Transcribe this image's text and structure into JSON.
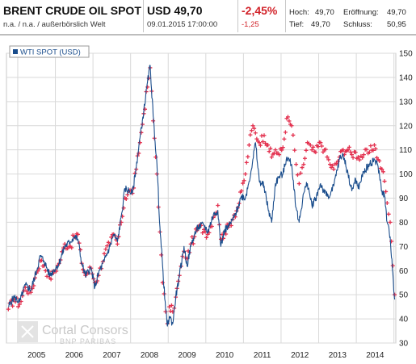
{
  "header": {
    "title": "BRENT CRUDE OIL SPOT",
    "subtitle": "n.a. / n.a. / außerbörslich Welt",
    "price": "USD 49,70",
    "datetime": "09.01.2015 17:00:00",
    "change_pct": "-2,45%",
    "change_abs": "-1,25",
    "high_label": "Hoch:",
    "high_value": "49,70",
    "open_label": "Eröffnung:",
    "open_value": "49,70",
    "low_label": "Tief:",
    "low_value": "49,70",
    "close_label": "Schluss:",
    "close_value": "50,95"
  },
  "watermark": {
    "brand": "Cortal Consors",
    "sub": "BNP PARIBAS"
  },
  "colors": {
    "wti_line": "#1a4d8c",
    "brent_marks": "#e3314f",
    "grid": "#d9d9d9",
    "negative": "#d2232a"
  },
  "chart_data": {
    "type": "line",
    "y_axis_position": "right",
    "legend_position": "top-left",
    "grid": true,
    "ylim": [
      30,
      150
    ],
    "y_ticks": [
      "30",
      "40",
      "50",
      "60",
      "70",
      "80",
      "90",
      "100",
      "110",
      "120",
      "130",
      "140",
      "150"
    ],
    "x_tick_labels": [
      "2005",
      "2006",
      "2007",
      "2008",
      "2009",
      "2010",
      "2011",
      "2012",
      "2013",
      "2014"
    ],
    "series": [
      {
        "name": "WTI SPOT (USD)",
        "style": "line",
        "points": [
          [
            2004.75,
            45
          ],
          [
            2004.9,
            49
          ],
          [
            2005.05,
            47
          ],
          [
            2005.2,
            54
          ],
          [
            2005.35,
            52
          ],
          [
            2005.5,
            60
          ],
          [
            2005.6,
            66
          ],
          [
            2005.7,
            64
          ],
          [
            2005.85,
            58
          ],
          [
            2005.95,
            60
          ],
          [
            2006.1,
            63
          ],
          [
            2006.25,
            70
          ],
          [
            2006.4,
            72
          ],
          [
            2006.5,
            74
          ],
          [
            2006.6,
            73
          ],
          [
            2006.7,
            63
          ],
          [
            2006.8,
            58
          ],
          [
            2006.95,
            61
          ],
          [
            2007.05,
            53
          ],
          [
            2007.15,
            59
          ],
          [
            2007.3,
            64
          ],
          [
            2007.45,
            70
          ],
          [
            2007.55,
            75
          ],
          [
            2007.65,
            72
          ],
          [
            2007.75,
            82
          ],
          [
            2007.85,
            94
          ],
          [
            2007.95,
            93
          ],
          [
            2008.05,
            92
          ],
          [
            2008.15,
            103
          ],
          [
            2008.25,
            115
          ],
          [
            2008.35,
            126
          ],
          [
            2008.45,
            138
          ],
          [
            2008.52,
            145
          ],
          [
            2008.6,
            124
          ],
          [
            2008.7,
            104
          ],
          [
            2008.78,
            78
          ],
          [
            2008.85,
            62
          ],
          [
            2008.93,
            44
          ],
          [
            2008.98,
            37
          ],
          [
            2009.03,
            41
          ],
          [
            2009.12,
            38
          ],
          [
            2009.2,
            49
          ],
          [
            2009.3,
            58
          ],
          [
            2009.42,
            70
          ],
          [
            2009.5,
            62
          ],
          [
            2009.6,
            70
          ],
          [
            2009.7,
            75
          ],
          [
            2009.8,
            78
          ],
          [
            2009.95,
            79
          ],
          [
            2010.05,
            76
          ],
          [
            2010.2,
            83
          ],
          [
            2010.32,
            85
          ],
          [
            2010.4,
            70
          ],
          [
            2010.5,
            77
          ],
          [
            2010.6,
            78
          ],
          [
            2010.75,
            82
          ],
          [
            2010.85,
            86
          ],
          [
            2010.95,
            91
          ],
          [
            2011.05,
            90
          ],
          [
            2011.15,
            97
          ],
          [
            2011.25,
            106
          ],
          [
            2011.32,
            113
          ],
          [
            2011.42,
            97
          ],
          [
            2011.55,
            95
          ],
          [
            2011.65,
            86
          ],
          [
            2011.75,
            80
          ],
          [
            2011.85,
            96
          ],
          [
            2011.95,
            99
          ],
          [
            2012.05,
            100
          ],
          [
            2012.15,
            107
          ],
          [
            2012.28,
            104
          ],
          [
            2012.4,
            86
          ],
          [
            2012.48,
            80
          ],
          [
            2012.6,
            92
          ],
          [
            2012.7,
            96
          ],
          [
            2012.82,
            87
          ],
          [
            2012.92,
            90
          ],
          [
            2013.05,
            96
          ],
          [
            2013.15,
            92
          ],
          [
            2013.3,
            91
          ],
          [
            2013.4,
            95
          ],
          [
            2013.55,
            106
          ],
          [
            2013.65,
            108
          ],
          [
            2013.78,
            100
          ],
          [
            2013.88,
            93
          ],
          [
            2013.98,
            98
          ],
          [
            2014.05,
            94
          ],
          [
            2014.2,
            101
          ],
          [
            2014.35,
            104
          ],
          [
            2014.48,
            106
          ],
          [
            2014.58,
            103
          ],
          [
            2014.68,
            93
          ],
          [
            2014.75,
            91
          ],
          [
            2014.82,
            80
          ],
          [
            2014.9,
            74
          ],
          [
            2014.97,
            59
          ],
          [
            2015.02,
            48
          ]
        ]
      },
      {
        "name": "",
        "style": "cross-marks",
        "points": [
          [
            2004.75,
            44
          ],
          [
            2004.9,
            48
          ],
          [
            2005.05,
            46
          ],
          [
            2005.2,
            53
          ],
          [
            2005.35,
            51
          ],
          [
            2005.5,
            59
          ],
          [
            2005.6,
            64
          ],
          [
            2005.7,
            62
          ],
          [
            2005.85,
            57
          ],
          [
            2005.95,
            59
          ],
          [
            2006.1,
            63
          ],
          [
            2006.25,
            71
          ],
          [
            2006.4,
            70
          ],
          [
            2006.5,
            74
          ],
          [
            2006.6,
            75
          ],
          [
            2006.7,
            63
          ],
          [
            2006.8,
            58
          ],
          [
            2006.95,
            61
          ],
          [
            2007.05,
            55
          ],
          [
            2007.15,
            58
          ],
          [
            2007.3,
            67
          ],
          [
            2007.45,
            71
          ],
          [
            2007.55,
            75
          ],
          [
            2007.65,
            71
          ],
          [
            2007.75,
            80
          ],
          [
            2007.85,
            90
          ],
          [
            2007.95,
            93
          ],
          [
            2008.05,
            92
          ],
          [
            2008.15,
            102
          ],
          [
            2008.25,
            113
          ],
          [
            2008.35,
            125
          ],
          [
            2008.45,
            136
          ],
          [
            2008.52,
            144
          ],
          [
            2008.6,
            122
          ],
          [
            2008.7,
            100
          ],
          [
            2008.78,
            76
          ],
          [
            2008.85,
            55
          ],
          [
            2008.93,
            43
          ],
          [
            2008.98,
            38
          ],
          [
            2009.03,
            45
          ],
          [
            2009.12,
            43
          ],
          [
            2009.2,
            49
          ],
          [
            2009.3,
            58
          ],
          [
            2009.42,
            68
          ],
          [
            2009.5,
            65
          ],
          [
            2009.6,
            71
          ],
          [
            2009.7,
            74
          ],
          [
            2009.8,
            78
          ],
          [
            2009.95,
            77
          ],
          [
            2010.05,
            75
          ],
          [
            2010.2,
            82
          ],
          [
            2010.32,
            87
          ],
          [
            2010.4,
            73
          ],
          [
            2010.5,
            76
          ],
          [
            2010.6,
            78
          ],
          [
            2010.75,
            83
          ],
          [
            2010.85,
            86
          ],
          [
            2010.95,
            93
          ],
          [
            2011.05,
            100
          ],
          [
            2011.15,
            112
          ],
          [
            2011.25,
            120
          ],
          [
            2011.32,
            117
          ],
          [
            2011.42,
            113
          ],
          [
            2011.55,
            116
          ],
          [
            2011.65,
            112
          ],
          [
            2011.75,
            107
          ],
          [
            2011.85,
            110
          ],
          [
            2011.95,
            108
          ],
          [
            2012.05,
            111
          ],
          [
            2012.15,
            123
          ],
          [
            2012.28,
            120
          ],
          [
            2012.4,
            104
          ],
          [
            2012.48,
            96
          ],
          [
            2012.6,
            104
          ],
          [
            2012.7,
            113
          ],
          [
            2012.82,
            110
          ],
          [
            2012.92,
            109
          ],
          [
            2013.05,
            113
          ],
          [
            2013.15,
            110
          ],
          [
            2013.3,
            104
          ],
          [
            2013.4,
            102
          ],
          [
            2013.55,
            107
          ],
          [
            2013.65,
            110
          ],
          [
            2013.78,
            110
          ],
          [
            2013.88,
            108
          ],
          [
            2013.98,
            109
          ],
          [
            2014.05,
            107
          ],
          [
            2014.2,
            108
          ],
          [
            2014.35,
            109
          ],
          [
            2014.48,
            112
          ],
          [
            2014.58,
            106
          ],
          [
            2014.68,
            102
          ],
          [
            2014.75,
            97
          ],
          [
            2014.82,
            88
          ],
          [
            2014.9,
            80
          ],
          [
            2014.97,
            62
          ],
          [
            2015.02,
            50
          ]
        ]
      }
    ]
  }
}
